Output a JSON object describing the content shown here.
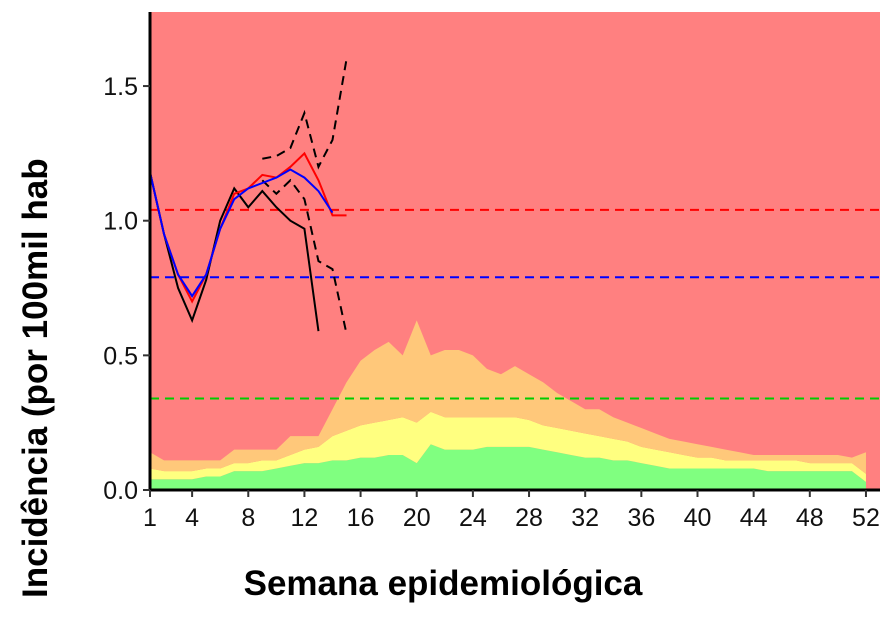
{
  "chart_data": {
    "type": "line",
    "x_label": "Semana epidemiológica",
    "y_label": "Incidência (por 100mil hab",
    "xlim": [
      1,
      53
    ],
    "ylim": [
      0,
      1.775
    ],
    "xticks": [
      1,
      4,
      8,
      12,
      16,
      20,
      24,
      28,
      32,
      36,
      40,
      44,
      48,
      52
    ],
    "yticks": [
      {
        "value": 0,
        "label": "0.0"
      },
      0.5,
      {
        "value": 1,
        "label": "1.0"
      },
      1.5
    ],
    "background_color": "#ff8080",
    "x": [
      1,
      2,
      3,
      4,
      5,
      6,
      7,
      8,
      9,
      10,
      11,
      12,
      13,
      14,
      15,
      16,
      17,
      18,
      19,
      20,
      21,
      22,
      23,
      24,
      25,
      26,
      27,
      28,
      29,
      30,
      31,
      32,
      33,
      34,
      35,
      36,
      37,
      38,
      39,
      40,
      41,
      42,
      43,
      44,
      45,
      46,
      47,
      48,
      49,
      50,
      51,
      52
    ],
    "areas": [
      {
        "color": "#80ff80",
        "values": [
          0.04,
          0.04,
          0.04,
          0.04,
          0.05,
          0.05,
          0.07,
          0.07,
          0.07,
          0.08,
          0.09,
          0.1,
          0.1,
          0.11,
          0.11,
          0.12,
          0.12,
          0.13,
          0.13,
          0.1,
          0.17,
          0.15,
          0.15,
          0.15,
          0.16,
          0.16,
          0.16,
          0.16,
          0.15,
          0.14,
          0.13,
          0.12,
          0.12,
          0.11,
          0.11,
          0.1,
          0.09,
          0.08,
          0.08,
          0.08,
          0.08,
          0.08,
          0.08,
          0.08,
          0.07,
          0.07,
          0.07,
          0.07,
          0.07,
          0.07,
          0.07,
          0.03
        ]
      },
      {
        "color": "#ffff80",
        "values": [
          0.04,
          0.03,
          0.03,
          0.03,
          0.03,
          0.03,
          0.03,
          0.03,
          0.04,
          0.03,
          0.04,
          0.05,
          0.06,
          0.09,
          0.11,
          0.12,
          0.13,
          0.13,
          0.14,
          0.15,
          0.12,
          0.12,
          0.12,
          0.12,
          0.11,
          0.11,
          0.11,
          0.1,
          0.09,
          0.09,
          0.09,
          0.09,
          0.08,
          0.08,
          0.07,
          0.06,
          0.06,
          0.06,
          0.05,
          0.04,
          0.04,
          0.03,
          0.03,
          0.03,
          0.04,
          0.04,
          0.04,
          0.03,
          0.03,
          0.03,
          0.03,
          0.03
        ]
      },
      {
        "color": "#ffc87a",
        "values": [
          0.06,
          0.04,
          0.04,
          0.04,
          0.03,
          0.03,
          0.05,
          0.05,
          0.04,
          0.04,
          0.07,
          0.05,
          0.04,
          0.1,
          0.18,
          0.24,
          0.27,
          0.29,
          0.23,
          0.38,
          0.21,
          0.25,
          0.25,
          0.23,
          0.18,
          0.16,
          0.19,
          0.17,
          0.16,
          0.13,
          0.11,
          0.09,
          0.1,
          0.08,
          0.07,
          0.07,
          0.06,
          0.05,
          0.05,
          0.05,
          0.04,
          0.04,
          0.03,
          0.02,
          0.02,
          0.02,
          0.02,
          0.03,
          0.03,
          0.03,
          0.02,
          0.08
        ]
      }
    ],
    "hlines": [
      {
        "value": 1.04,
        "color": "#ff0000"
      },
      {
        "value": 0.79,
        "color": "#0000ff"
      },
      {
        "value": 0.34,
        "color": "#00cc00"
      }
    ],
    "series": [
      {
        "color": "#000000",
        "dashed": true,
        "x": [
          9,
          10,
          11,
          12,
          13,
          14,
          15
        ],
        "values": [
          1.23,
          1.24,
          1.27,
          1.4,
          1.2,
          1.3,
          1.6
        ]
      },
      {
        "color": "#000000",
        "dashed": true,
        "x": [
          9,
          10,
          11,
          12,
          13,
          14,
          15
        ],
        "values": [
          1.15,
          1.1,
          1.15,
          1.08,
          0.85,
          0.82,
          0.58
        ]
      },
      {
        "color": "#000000",
        "dashed": false,
        "x": [
          1,
          2,
          3,
          4,
          5,
          6,
          7,
          8,
          9,
          10,
          11,
          12,
          13
        ],
        "values": [
          1.18,
          0.95,
          0.75,
          0.63,
          0.78,
          1.0,
          1.12,
          1.05,
          1.11,
          1.05,
          1.0,
          0.97,
          0.59
        ]
      },
      {
        "color": "#ff0000",
        "dashed": false,
        "x": [
          1,
          2,
          3,
          4,
          5,
          6,
          7,
          8,
          9,
          10,
          11,
          12,
          13,
          14,
          15
        ],
        "values": [
          1.18,
          0.95,
          0.8,
          0.7,
          0.8,
          0.97,
          1.1,
          1.12,
          1.17,
          1.16,
          1.2,
          1.25,
          1.15,
          1.02,
          1.02
        ]
      },
      {
        "color": "#0000ff",
        "dashed": false,
        "x": [
          1,
          2,
          3,
          4,
          5,
          6,
          7,
          8,
          9,
          10,
          11,
          12,
          13,
          14
        ],
        "values": [
          1.18,
          0.95,
          0.8,
          0.72,
          0.8,
          0.97,
          1.08,
          1.12,
          1.14,
          1.16,
          1.19,
          1.16,
          1.11,
          1.03
        ]
      }
    ]
  }
}
